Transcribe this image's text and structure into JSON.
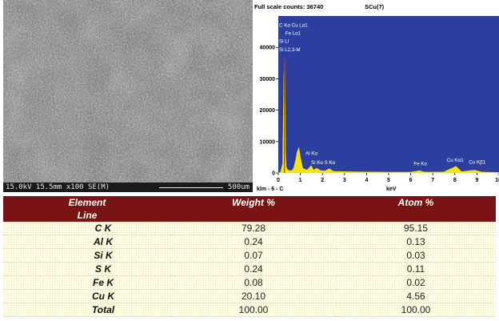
{
  "sem": {
    "info_left": "15.0kV 15.5mm x100 SE(M)",
    "info_right": "500um"
  },
  "spectrum": {
    "full_scale": "Full scale counts: 36740",
    "sample": "SCu(7)",
    "bottom_left": "klm - 6 - C",
    "xlabel": "keV",
    "peak_labels": [
      "C Kα Cu Lα1",
      "Fe Lα1",
      "Si Ll",
      "Si L2,3-M",
      "Al Kα",
      "Si Kα",
      "S Kα",
      "Fe Kα",
      "Cu Kα1",
      "Cu Kβ1"
    ]
  },
  "chart_data": {
    "type": "line",
    "title": "",
    "xlabel": "keV",
    "ylabel": "",
    "xlim": [
      0,
      10
    ],
    "ylim": [
      0,
      50000
    ],
    "x_ticks": [
      0,
      1,
      2,
      3,
      4,
      5,
      6,
      7,
      8,
      9,
      10
    ],
    "y_ticks": [
      0,
      10000,
      20000,
      30000,
      40000
    ],
    "y_tick_labels": [
      "0",
      "10000",
      "20000",
      "30000",
      "40000"
    ],
    "x_tick_labels": [
      "0",
      "1",
      "2",
      "3",
      "4",
      "5",
      "6",
      "7",
      "8",
      "9",
      "10"
    ],
    "grid": false,
    "background_color": "#2c3e9e",
    "fill_color": "#f2e50b",
    "series": [
      {
        "x": [
          0.0,
          0.1,
          0.2,
          0.25,
          0.28,
          0.3,
          0.33,
          0.36,
          0.4,
          0.45,
          0.5,
          0.6,
          0.7,
          0.8,
          0.85,
          0.93,
          1.0,
          1.1,
          1.3,
          1.49,
          1.6,
          1.74,
          1.9,
          2.1,
          2.31,
          2.5,
          3.0,
          4.0,
          5.0,
          6.0,
          6.4,
          6.6,
          7.0,
          7.5,
          8.05,
          8.3,
          8.9,
          9.2,
          10.0
        ],
        "y": [
          0,
          200,
          3000,
          30000,
          36740,
          30000,
          6000,
          2000,
          1200,
          900,
          800,
          700,
          1500,
          4500,
          6500,
          8000,
          5000,
          1500,
          900,
          2300,
          900,
          1500,
          800,
          600,
          1300,
          500,
          400,
          300,
          250,
          250,
          700,
          300,
          250,
          300,
          2100,
          400,
          900,
          300,
          150
        ]
      }
    ],
    "annotations": [
      "C Kα Cu Lα1",
      "Fe Lα1",
      "Si Ll",
      "Si L2,3-M",
      "Al Kα",
      "Si Kα",
      "S Kα",
      "Fe Kα",
      "Cu Kα1",
      "Cu Kβ1"
    ]
  },
  "table": {
    "headers": [
      "Element",
      "Weight %",
      "Atom %"
    ],
    "header2": "Line",
    "rows": [
      {
        "element": "C K",
        "weight": "79.28",
        "atom": "95.15"
      },
      {
        "element": "Al K",
        "weight": "0.24",
        "atom": "0.13"
      },
      {
        "element": "Si K",
        "weight": "0.07",
        "atom": "0.03"
      },
      {
        "element": "S K",
        "weight": "0.24",
        "atom": "0.11"
      },
      {
        "element": "Fe K",
        "weight": "0.08",
        "atom": "0.02"
      },
      {
        "element": "Cu K",
        "weight": "20.10",
        "atom": "4.56"
      },
      {
        "element": "Total",
        "weight": "100.00",
        "atom": "100.00"
      }
    ]
  }
}
